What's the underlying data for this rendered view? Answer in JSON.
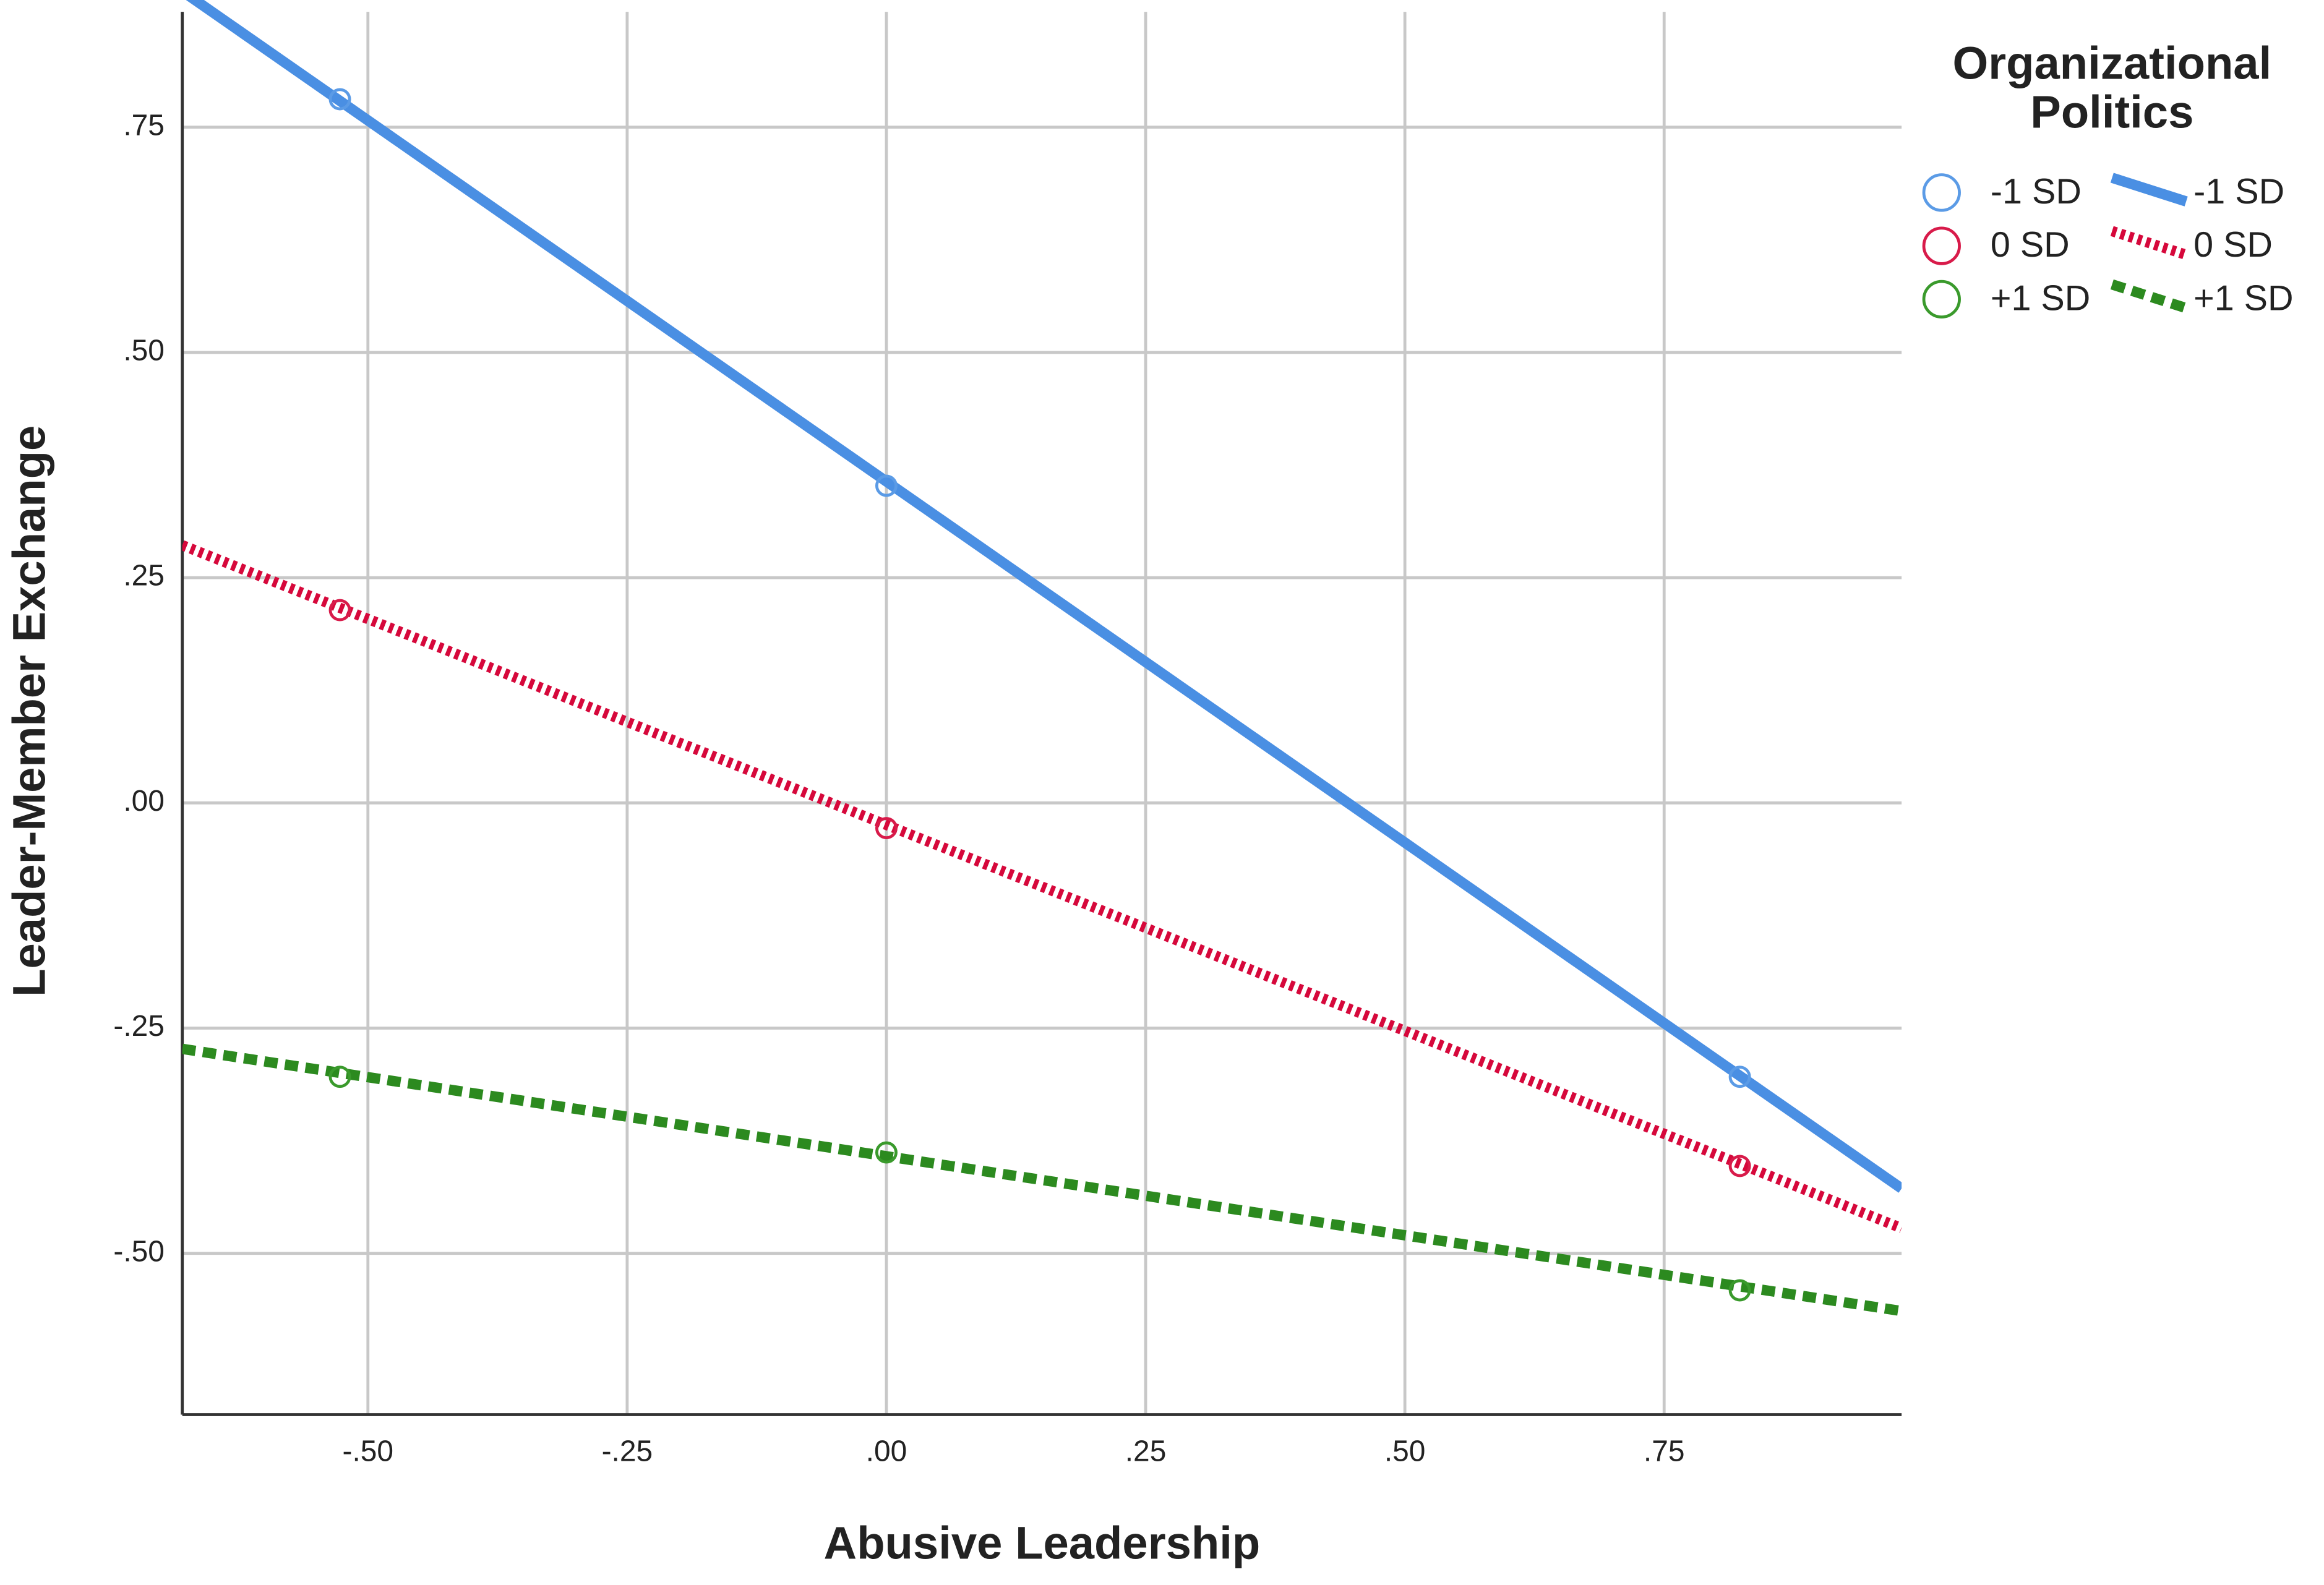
{
  "chart_data": {
    "type": "scatter",
    "x_label": "Abusive Leadership",
    "y_label": "Leader-Member Exchange",
    "legend_title": [
      "Organizational",
      "Politics"
    ],
    "legend_position": "outside-right",
    "grid": true,
    "xlim": [
      -0.679,
      0.979
    ],
    "ylim": [
      -0.679,
      0.878
    ],
    "xticks": [
      {
        "value": -0.5,
        "label": "-.50"
      },
      {
        "value": -0.25,
        "label": "-.25"
      },
      {
        "value": 0,
        "label": ".00"
      },
      {
        "value": 0.25,
        "label": ".25"
      },
      {
        "value": 0.5,
        "label": ".50"
      },
      {
        "value": 0.75,
        "label": ".75"
      }
    ],
    "yticks": [
      {
        "value": -0.5,
        "label": "-.50"
      },
      {
        "value": -0.25,
        "label": "-.25"
      },
      {
        "value": 0,
        "label": ".00"
      },
      {
        "value": 0.25,
        "label": ".25"
      },
      {
        "value": 0.5,
        "label": ".50"
      },
      {
        "value": 0.75,
        "label": ".75"
      }
    ],
    "series": [
      {
        "name": "-1 SD",
        "mode": "markers",
        "color": "#5b9be6",
        "x": [
          -0.527,
          0,
          0.823
        ],
        "values": [
          0.781,
          0.352,
          -0.304
        ]
      },
      {
        "name": "0 SD",
        "mode": "markers",
        "color": "#d81b4a",
        "x": [
          -0.527,
          0,
          0.823
        ],
        "values": [
          0.214,
          -0.028,
          -0.403
        ]
      },
      {
        "name": "+1 SD",
        "mode": "markers",
        "color": "#3a9a2c",
        "x": [
          -0.527,
          0,
          0.823
        ],
        "values": [
          -0.304,
          -0.388,
          -0.541
        ]
      },
      {
        "name": "-1 SD",
        "mode": "line",
        "dash": "solid",
        "color": "#4a8fe3",
        "x": [
          -0.679,
          0.979
        ],
        "values": [
          0.901,
          -0.428
        ]
      },
      {
        "name": "0 SD",
        "mode": "line",
        "dash": "dotted",
        "color": "#d6083b",
        "x": [
          -0.679,
          0.979
        ],
        "values": [
          0.286,
          -0.472
        ]
      },
      {
        "name": "+1 SD",
        "mode": "line",
        "dash": "dashed",
        "color": "#2c8a1f",
        "x": [
          -0.679,
          0.979
        ],
        "values": [
          -0.273,
          -0.564
        ]
      }
    ]
  }
}
